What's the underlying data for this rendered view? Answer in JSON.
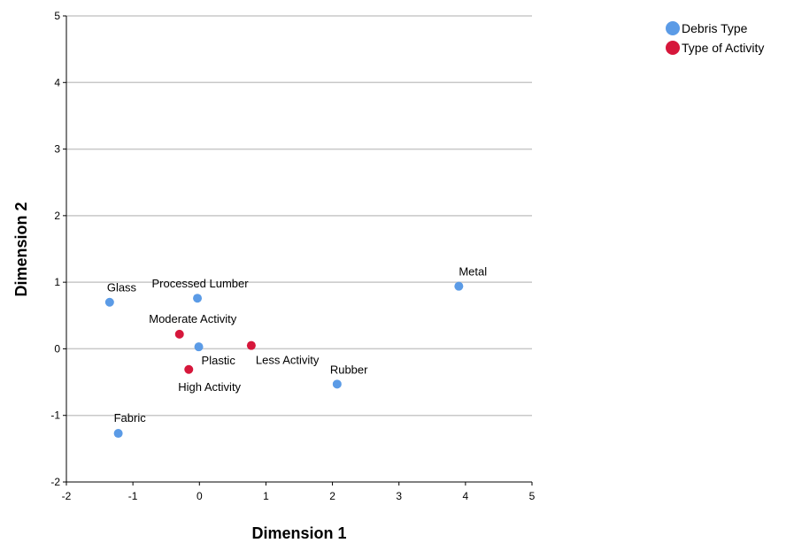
{
  "chart_data": {
    "type": "scatter",
    "xlabel": "Dimension 1",
    "ylabel": "Dimension 2",
    "xlim": [
      -2,
      5
    ],
    "ylim": [
      -2,
      5
    ],
    "xticks": [
      "-2",
      "-1",
      "0",
      "1",
      "2",
      "3",
      "4",
      "5"
    ],
    "yticks": [
      "-2",
      "-1",
      "0",
      "1",
      "2",
      "3",
      "4",
      "5"
    ],
    "grid": "horizontal",
    "legend_position": "top-right",
    "series": [
      {
        "name": "Debris Type",
        "color": "#5b9be6",
        "points": [
          {
            "label": "Glass",
            "x": -1.35,
            "y": 0.7
          },
          {
            "label": "Processed Lumber",
            "x": -0.03,
            "y": 0.76
          },
          {
            "label": "Metal",
            "x": 3.9,
            "y": 0.94
          },
          {
            "label": "Plastic",
            "x": -0.01,
            "y": 0.03
          },
          {
            "label": "Rubber",
            "x": 2.07,
            "y": -0.53
          },
          {
            "label": "Fabric",
            "x": -1.22,
            "y": -1.27
          }
        ]
      },
      {
        "name": "Type of Activity",
        "color": "#d6173b",
        "points": [
          {
            "label": "Moderate Activity",
            "x": -0.3,
            "y": 0.22
          },
          {
            "label": "Less Activity",
            "x": 0.78,
            "y": 0.05
          },
          {
            "label": "High Activity",
            "x": -0.16,
            "y": -0.31
          }
        ]
      }
    ]
  }
}
